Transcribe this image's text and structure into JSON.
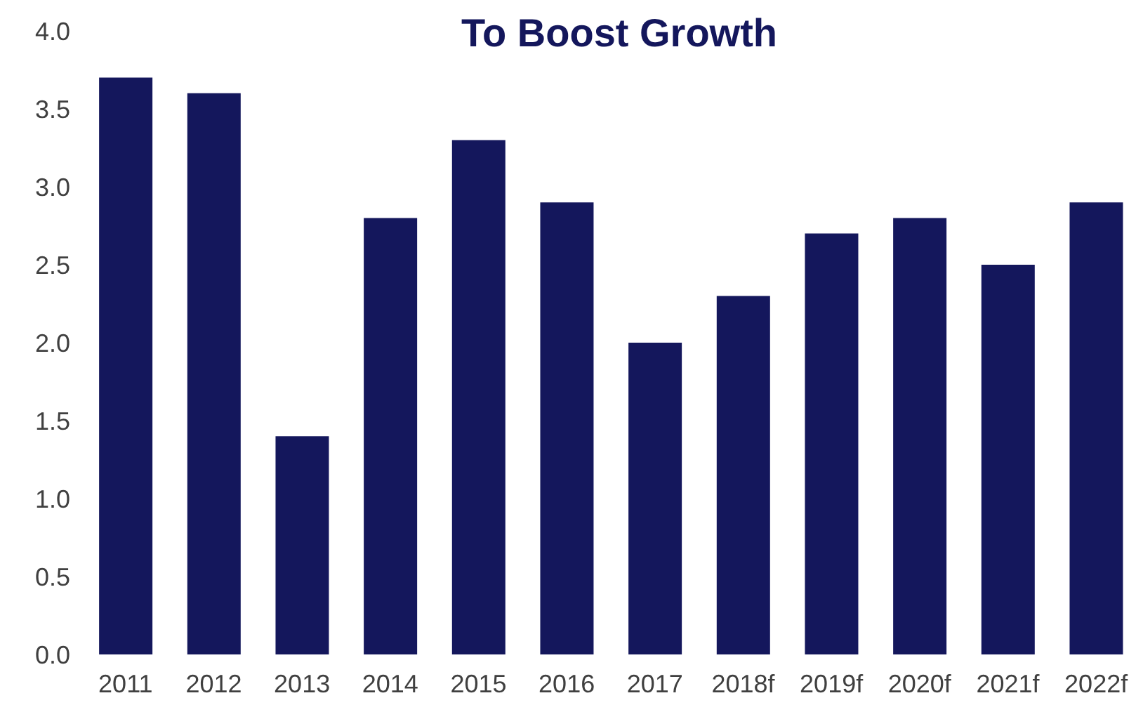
{
  "chart_data": {
    "type": "bar",
    "title": "To Boost Growth",
    "categories": [
      "2011",
      "2012",
      "2013",
      "2014",
      "2015",
      "2016",
      "2017",
      "2018f",
      "2019f",
      "2020f",
      "2021f",
      "2022f"
    ],
    "values": [
      3.7,
      3.6,
      1.4,
      2.8,
      3.3,
      2.9,
      2.0,
      2.3,
      2.7,
      2.8,
      2.5,
      2.9
    ],
    "color": "#14175c",
    "ylim": [
      0,
      4
    ],
    "yticks": [
      {
        "value": 0,
        "label": "0.0"
      },
      {
        "value": 0.5,
        "label": "0.5"
      },
      {
        "value": 1,
        "label": "1.0"
      },
      {
        "value": 1.5,
        "label": "1.5"
      },
      {
        "value": 2,
        "label": "2.0"
      },
      {
        "value": 2.5,
        "label": "2.5"
      },
      {
        "value": 3,
        "label": "3.0"
      },
      {
        "value": 3.5,
        "label": "3.5"
      },
      {
        "value": 4,
        "label": "4.0"
      }
    ],
    "grid": false,
    "legend": false
  }
}
